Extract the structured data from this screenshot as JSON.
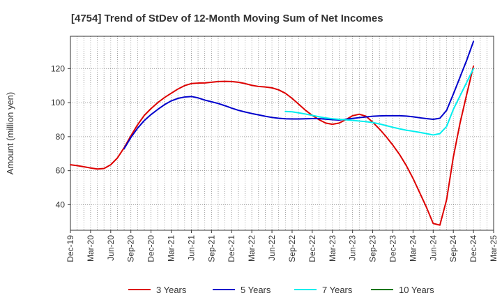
{
  "chart_data": {
    "type": "line",
    "title": "[4754]  Trend of StDev of 12-Month Moving Sum of Net Incomes",
    "xlabel": "",
    "ylabel": "Amount (million yen)",
    "x_tick_labels": [
      "Dec-19",
      "Mar-20",
      "Jun-20",
      "Sep-20",
      "Dec-20",
      "Mar-21",
      "Jun-21",
      "Sep-21",
      "Dec-21",
      "Mar-22",
      "Jun-22",
      "Sep-22",
      "Dec-22",
      "Mar-23",
      "Jun-23",
      "Sep-23",
      "Dec-23",
      "Mar-24",
      "Jun-24",
      "Sep-24",
      "Dec-24",
      "Mar-25"
    ],
    "y_ticks": [
      40,
      60,
      80,
      100,
      120
    ],
    "ylim": [
      25,
      139
    ],
    "grid": true,
    "legend_position": "bottom",
    "colors": {
      "3 Years": "#dd0000",
      "5 Years": "#0000cc",
      "7 Years": "#00eeee",
      "10 Years": "#007700"
    },
    "series": [
      {
        "name": "3 Years",
        "x": [
          "2019-12",
          "2020-01",
          "2020-02",
          "2020-03",
          "2020-04",
          "2020-05",
          "2020-06",
          "2020-07",
          "2020-08",
          "2020-09",
          "2020-10",
          "2020-11",
          "2020-12",
          "2021-01",
          "2021-02",
          "2021-03",
          "2021-04",
          "2021-05",
          "2021-06",
          "2021-07",
          "2021-08",
          "2021-09",
          "2021-10",
          "2021-11",
          "2021-12",
          "2022-01",
          "2022-02",
          "2022-03",
          "2022-04",
          "2022-05",
          "2022-06",
          "2022-07",
          "2022-08",
          "2022-09",
          "2022-10",
          "2022-11",
          "2022-12",
          "2023-01",
          "2023-02",
          "2023-03",
          "2023-04",
          "2023-05",
          "2023-06",
          "2023-07",
          "2023-08",
          "2023-09",
          "2023-10",
          "2023-11",
          "2023-12",
          "2024-01",
          "2024-02",
          "2024-03",
          "2024-04",
          "2024-05",
          "2024-06",
          "2024-07",
          "2024-08",
          "2024-09",
          "2024-10",
          "2024-11",
          "2024-12"
        ],
        "values": [
          63.5,
          63.0,
          62.3,
          61.6,
          61.0,
          61.3,
          63.5,
          67.5,
          73.5,
          80.5,
          87.0,
          92.5,
          96.5,
          100.0,
          103.0,
          105.5,
          108.0,
          110.0,
          111.2,
          111.5,
          111.6,
          112.0,
          112.4,
          112.5,
          112.4,
          112.0,
          111.2,
          110.2,
          109.5,
          109.2,
          108.7,
          107.5,
          105.5,
          102.5,
          99.0,
          95.5,
          92.5,
          90.0,
          88.0,
          87.3,
          88.0,
          90.0,
          92.3,
          93.2,
          92.0,
          88.5,
          84.5,
          80.0,
          75.0,
          69.5,
          63.0,
          55.5,
          47.0,
          38.5,
          29.0,
          28.0,
          43.0,
          68.0,
          88.0,
          105.0,
          121.5
        ]
      },
      {
        "name": "5 Years",
        "x": [
          "2020-08",
          "2020-09",
          "2020-10",
          "2020-11",
          "2020-12",
          "2021-01",
          "2021-02",
          "2021-03",
          "2021-04",
          "2021-05",
          "2021-06",
          "2021-07",
          "2021-08",
          "2021-09",
          "2021-10",
          "2021-11",
          "2021-12",
          "2022-01",
          "2022-02",
          "2022-03",
          "2022-04",
          "2022-05",
          "2022-06",
          "2022-07",
          "2022-08",
          "2022-09",
          "2022-10",
          "2022-11",
          "2022-12",
          "2023-01",
          "2023-02",
          "2023-03",
          "2023-04",
          "2023-05",
          "2023-06",
          "2023-07",
          "2023-08",
          "2023-09",
          "2023-10",
          "2023-11",
          "2023-12",
          "2024-01",
          "2024-02",
          "2024-03",
          "2024-04",
          "2024-05",
          "2024-06",
          "2024-07",
          "2024-08",
          "2024-09",
          "2024-10",
          "2024-11",
          "2024-12"
        ],
        "values": [
          73.0,
          79.5,
          85.0,
          89.5,
          93.0,
          96.0,
          98.8,
          101.0,
          102.5,
          103.3,
          103.6,
          102.8,
          101.5,
          100.5,
          99.5,
          98.2,
          96.8,
          95.5,
          94.5,
          93.6,
          92.8,
          92.0,
          91.3,
          90.8,
          90.5,
          90.4,
          90.4,
          90.5,
          90.6,
          90.6,
          90.3,
          90.0,
          89.8,
          90.2,
          90.7,
          91.2,
          91.6,
          92.0,
          92.2,
          92.3,
          92.3,
          92.3,
          92.1,
          91.7,
          91.1,
          90.6,
          90.2,
          90.8,
          95.5,
          105.0,
          115.0,
          125.0,
          136.0
        ]
      },
      {
        "name": "7 Years",
        "x": [
          "2022-08",
          "2022-09",
          "2022-10",
          "2022-11",
          "2022-12",
          "2023-01",
          "2023-02",
          "2023-03",
          "2023-04",
          "2023-05",
          "2023-06",
          "2023-07",
          "2023-08",
          "2023-09",
          "2023-10",
          "2023-11",
          "2023-12",
          "2024-01",
          "2024-02",
          "2024-03",
          "2024-04",
          "2024-05",
          "2024-06",
          "2024-07",
          "2024-08",
          "2024-09",
          "2024-10",
          "2024-11",
          "2024-12"
        ],
        "values": [
          94.8,
          94.6,
          94.0,
          93.3,
          92.5,
          91.7,
          91.0,
          90.5,
          90.2,
          89.9,
          89.6,
          89.2,
          88.8,
          88.3,
          87.5,
          86.5,
          85.5,
          84.6,
          83.8,
          83.2,
          82.5,
          81.8,
          81.0,
          81.8,
          86.0,
          96.0,
          104.0,
          112.0,
          120.0
        ]
      },
      {
        "name": "10 Years",
        "x": [],
        "values": []
      }
    ]
  }
}
